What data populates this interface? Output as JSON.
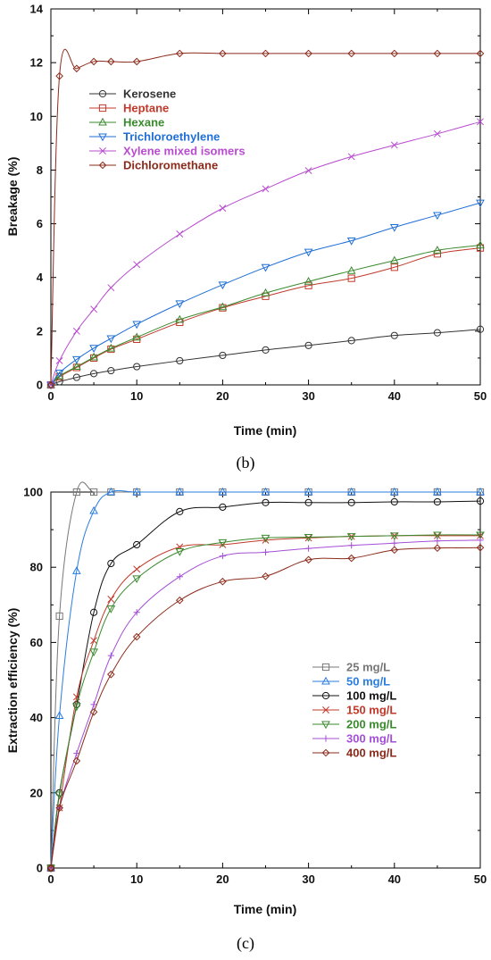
{
  "chart_data": [
    {
      "type": "line",
      "panel_label": "(b)",
      "xlabel": "Time (min)",
      "ylabel": "Breakage (%)",
      "xlim": [
        0,
        50
      ],
      "ylim": [
        0,
        14
      ],
      "xticks": [
        0,
        10,
        20,
        30,
        40,
        50
      ],
      "yticks": [
        0,
        2,
        4,
        6,
        8,
        10,
        12,
        14
      ],
      "grid": false,
      "legend_position": "upper-left",
      "x": [
        0,
        1,
        3,
        5,
        7,
        10,
        15,
        20,
        25,
        30,
        35,
        40,
        45,
        50
      ],
      "series": [
        {
          "name": "Kerosene",
          "marker": "circle",
          "color": "#333333",
          "values": [
            0,
            0.12,
            0.28,
            0.42,
            0.53,
            0.68,
            0.9,
            1.1,
            1.3,
            1.47,
            1.65,
            1.84,
            1.94,
            2.07
          ]
        },
        {
          "name": "Heptane",
          "marker": "square",
          "color": "#c0392b",
          "values": [
            0,
            0.3,
            0.65,
            1.0,
            1.33,
            1.7,
            2.33,
            2.87,
            3.3,
            3.7,
            3.97,
            4.38,
            4.88,
            5.1
          ]
        },
        {
          "name": "Hexane",
          "marker": "triangle-up",
          "color": "#3a8a2e",
          "values": [
            0,
            0.33,
            0.68,
            1.03,
            1.36,
            1.77,
            2.43,
            2.9,
            3.42,
            3.85,
            4.25,
            4.63,
            5.01,
            5.2
          ]
        },
        {
          "name": "Trichloroethylene",
          "marker": "triangle-down",
          "color": "#1f6fd6",
          "values": [
            0,
            0.45,
            0.95,
            1.37,
            1.73,
            2.26,
            3.03,
            3.73,
            4.38,
            4.95,
            5.37,
            5.87,
            6.32,
            6.78
          ]
        },
        {
          "name": "Xylene mixed isomers",
          "marker": "x",
          "color": "#b84ccf",
          "values": [
            0,
            0.9,
            2.0,
            2.82,
            3.62,
            4.48,
            5.62,
            6.58,
            7.3,
            7.98,
            8.5,
            8.93,
            9.35,
            9.8
          ]
        },
        {
          "name": "Dichloromethane",
          "marker": "diamond",
          "color": "#8b2a1a",
          "values": [
            0,
            11.5,
            11.78,
            12.04,
            12.04,
            12.04,
            12.34,
            12.34,
            12.34,
            12.34,
            12.34,
            12.34,
            12.34,
            12.34
          ]
        }
      ]
    },
    {
      "type": "line",
      "panel_label": "(c)",
      "xlabel": "Time (min)",
      "ylabel": "Extraction efficiency (%)",
      "xlim": [
        0,
        50
      ],
      "ylim": [
        0,
        100
      ],
      "xticks": [
        0,
        10,
        20,
        30,
        40,
        50
      ],
      "yticks": [
        0,
        20,
        40,
        60,
        80,
        100
      ],
      "grid": false,
      "legend_position": "middle-right",
      "x": [
        0,
        1,
        3,
        5,
        7,
        10,
        15,
        20,
        25,
        30,
        35,
        40,
        45,
        50
      ],
      "series": [
        {
          "name": "25  mg/L",
          "marker": "square",
          "color": "#777777",
          "values": [
            0,
            67,
            100,
            100,
            100,
            100,
            100,
            100,
            100,
            100,
            100,
            100,
            100,
            100
          ]
        },
        {
          "name": "50  mg/L",
          "marker": "triangle-up",
          "color": "#2a7de1",
          "values": [
            0,
            40.5,
            79,
            95,
            100,
            100,
            100,
            100,
            100,
            100,
            100,
            100,
            100,
            100
          ]
        },
        {
          "name": "100  mg/L",
          "marker": "circle",
          "color": "#111111",
          "values": [
            0,
            20,
            43.5,
            68,
            81,
            86,
            94.8,
            96,
            97.2,
            97.2,
            97.2,
            97.4,
            97.4,
            97.6
          ]
        },
        {
          "name": "150  mg/L",
          "marker": "x",
          "color": "#c0392b",
          "values": [
            0,
            16,
            45.5,
            60.5,
            71.5,
            79.5,
            85.4,
            86,
            87.2,
            87.8,
            88.2,
            88.4,
            88.4,
            88.4
          ]
        },
        {
          "name": "200  mg/L",
          "marker": "triangle-down",
          "color": "#3a8a2e",
          "values": [
            0,
            19.5,
            43,
            57.5,
            69,
            77,
            84.2,
            86.6,
            87.8,
            88,
            88.2,
            88.4,
            88.6,
            88.6
          ]
        },
        {
          "name": "300  mg/L",
          "marker": "plus",
          "color": "#a44fd6",
          "values": [
            0,
            16,
            30.5,
            43.5,
            56.5,
            68,
            77.5,
            83,
            84,
            85,
            85.8,
            86.4,
            87,
            87.2
          ]
        },
        {
          "name": "400  mg/L",
          "marker": "diamond",
          "color": "#8b2a1a",
          "values": [
            0,
            16,
            28.5,
            41.5,
            51.5,
            61.5,
            71.2,
            76.2,
            77.6,
            82,
            82.4,
            84.6,
            85.1,
            85.2
          ]
        }
      ]
    }
  ]
}
